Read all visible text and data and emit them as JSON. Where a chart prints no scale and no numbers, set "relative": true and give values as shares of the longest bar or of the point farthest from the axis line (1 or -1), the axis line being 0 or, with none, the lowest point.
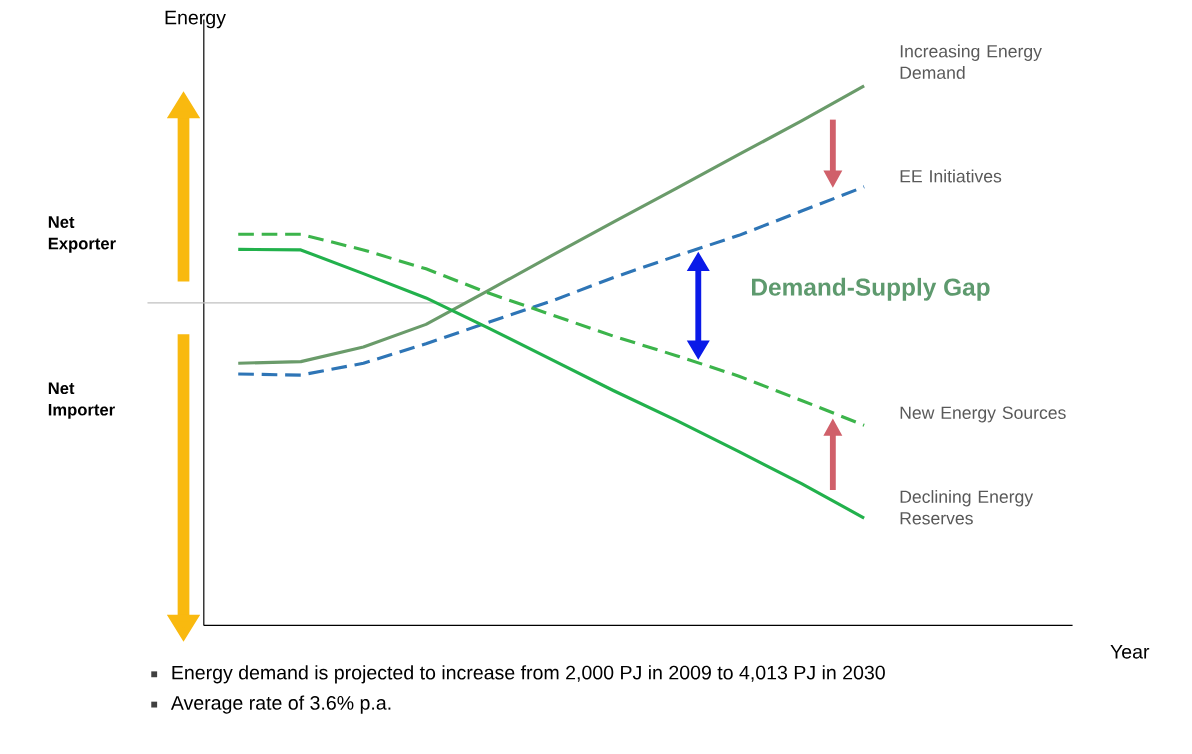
{
  "chart_data": {
    "type": "line",
    "relative": true,
    "ylabel": "Energy",
    "categories": [
      null,
      null,
      null,
      null,
      null,
      null,
      null,
      null,
      null,
      null,
      null
    ],
    "series": [
      {
        "name": "Increasing  Energy Demand",
        "color": "#6a9b6a",
        "line_style": "solid",
        "values": [
          0.486,
          0.489,
          0.516,
          0.558,
          0.621,
          0.685,
          0.748,
          0.81,
          0.873,
          0.935,
          1.0
        ]
      },
      {
        "name": "EE Initiatives",
        "color": "#2e75b6",
        "line_style": "dashed",
        "values": [
          0.466,
          0.464,
          0.486,
          0.522,
          0.562,
          0.601,
          0.645,
          0.685,
          0.723,
          0.768,
          0.813
        ]
      },
      {
        "name": "New Energy Sources",
        "color": "#3cb44b",
        "line_style": "dashed",
        "values": [
          0.725,
          0.725,
          0.696,
          0.661,
          0.616,
          0.576,
          0.536,
          0.5,
          0.462,
          0.417,
          0.371
        ]
      },
      {
        "name": "Declining Energy Reserves",
        "color": "#22b14c",
        "line_style": "solid",
        "values": [
          0.697,
          0.696,
          0.652,
          0.607,
          0.551,
          0.493,
          0.435,
          0.38,
          0.322,
          0.263,
          0.199
        ]
      }
    ],
    "ref_lines": [
      {
        "axis": "y",
        "value": 0.598,
        "color": "#c0c0c0"
      }
    ],
    "annotations": [
      "Demand-Supply Gap",
      "Net Exporter",
      "Net Importer",
      "Energy demand is projected to increase from 2,000 PJ in 2009 to 4,013 PJ in 2030",
      "Average rate of 3.6% p.a.",
      "Year"
    ],
    "legend": false,
    "marker": "none"
  }
}
